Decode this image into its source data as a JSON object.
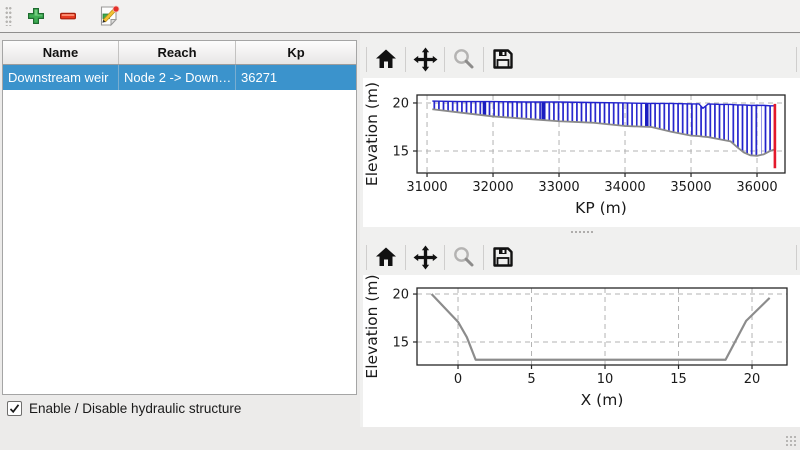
{
  "colors": {
    "selection_blue": "#3b93cc",
    "hatch_blue": "#2222cc",
    "marker_red": "#e4192b",
    "profile_grey": "#8c8c8c",
    "add_green": "#3fae53",
    "remove_red": "#e73b22"
  },
  "main_toolbar": {
    "buttons": [
      {
        "name": "add-structure",
        "icon": "plus-icon"
      },
      {
        "name": "remove-structure",
        "icon": "minus-icon"
      },
      {
        "name": "edit-structure",
        "icon": "edit-page-icon"
      }
    ]
  },
  "table": {
    "columns": [
      "Name",
      "Reach",
      "Kp"
    ],
    "rows": [
      {
        "name": "Downstream weir",
        "reach": "Node 2 -> Down…",
        "kp": "36271",
        "selected": true
      }
    ]
  },
  "checkbox": {
    "label": "Enable / Disable hydraulic structure",
    "checked": true,
    "checkmark": "✓"
  },
  "chart_toolbar": {
    "buttons": [
      {
        "name": "home",
        "icon": "home-icon"
      },
      {
        "name": "pan",
        "icon": "pan-arrows-icon"
      },
      {
        "name": "zoom",
        "icon": "magnifier-icon",
        "disabled": true
      },
      {
        "name": "save",
        "icon": "save-floppy-icon"
      }
    ]
  },
  "chart_data": [
    {
      "type": "area",
      "title": "",
      "xlabel": "KP (m)",
      "ylabel": "Elevation (m)",
      "xlim": [
        30848,
        36424
      ],
      "ylim": [
        12.71,
        20.83
      ],
      "xticks": [
        31000,
        32000,
        33000,
        34000,
        35000,
        36000
      ],
      "yticks": [
        15,
        20
      ],
      "grid": true,
      "envelope": {
        "x": [
          31080,
          31500,
          32000,
          32500,
          33000,
          33500,
          34000,
          34400,
          34700,
          35000,
          35120,
          35180,
          35260,
          35450,
          35600,
          35700,
          35800,
          35900,
          36000,
          36100,
          36200,
          36280
        ],
        "top": [
          20.2,
          20.15,
          20.15,
          20.1,
          20.1,
          20.05,
          20.0,
          19.95,
          19.95,
          19.9,
          19.9,
          19.45,
          19.9,
          19.85,
          19.85,
          19.8,
          19.8,
          19.75,
          19.75,
          19.75,
          19.7,
          19.7
        ],
        "bottom": [
          19.35,
          19.0,
          18.6,
          18.35,
          18.1,
          17.95,
          17.6,
          17.5,
          17.0,
          16.6,
          16.55,
          16.5,
          16.45,
          16.2,
          16.0,
          15.4,
          14.85,
          14.55,
          14.5,
          14.65,
          15.0,
          15.2
        ]
      },
      "thick_bars": [
        31870,
        32760,
        34330
      ],
      "gaps": [
        34150,
        35110,
        35590,
        36050
      ],
      "marker_line": {
        "x": 36271,
        "y0": 13.2,
        "y1": 19.9
      }
    },
    {
      "type": "line",
      "title": "",
      "xlabel": "X (m)",
      "ylabel": "Elevation (m)",
      "xlim": [
        -2.79,
        22.38
      ],
      "ylim": [
        12.6,
        20.63
      ],
      "xticks": [
        0,
        5,
        10,
        15,
        20
      ],
      "yticks": [
        15,
        20
      ],
      "grid": true,
      "line": {
        "x": [
          -1.8,
          0,
          0.6,
          1.2,
          18.2,
          19.6,
          21.2
        ],
        "y": [
          20.0,
          17.1,
          15.5,
          13.15,
          13.15,
          17.2,
          19.6
        ]
      }
    }
  ]
}
